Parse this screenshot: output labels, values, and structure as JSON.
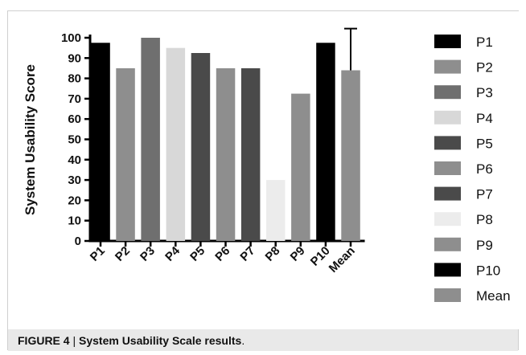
{
  "chart_data": {
    "type": "bar",
    "categories": [
      "P1",
      "P2",
      "P3",
      "P4",
      "P5",
      "P6",
      "P7",
      "P8",
      "P9",
      "P10",
      "Mean"
    ],
    "values": [
      97.5,
      85,
      100,
      95,
      92.5,
      85,
      85,
      30,
      72.5,
      97.5,
      84
    ],
    "error_bar": {
      "category": "Mean",
      "upper": 104.5
    },
    "ylabel": "System Usability Score",
    "xlabel": "",
    "ylim": [
      0,
      100
    ],
    "yticks": [
      0,
      10,
      20,
      30,
      40,
      50,
      60,
      70,
      80,
      90,
      100
    ],
    "legend": {
      "position": "right",
      "entries": [
        "P1",
        "P2",
        "P3",
        "P4",
        "P5",
        "P6",
        "P7",
        "P8",
        "P9",
        "P10",
        "Mean"
      ]
    },
    "colors": [
      "#000000",
      "#8e8e8e",
      "#6f6f6f",
      "#d8d8d8",
      "#4a4a4a",
      "#8e8e8e",
      "#4a4a4a",
      "#ececec",
      "#8e8e8e",
      "#000000",
      "#8e8e8e"
    ],
    "grid": false
  },
  "caption": {
    "label": "FIGURE 4",
    "separator": " | ",
    "text": "System Usability Scale results",
    "end": "."
  }
}
